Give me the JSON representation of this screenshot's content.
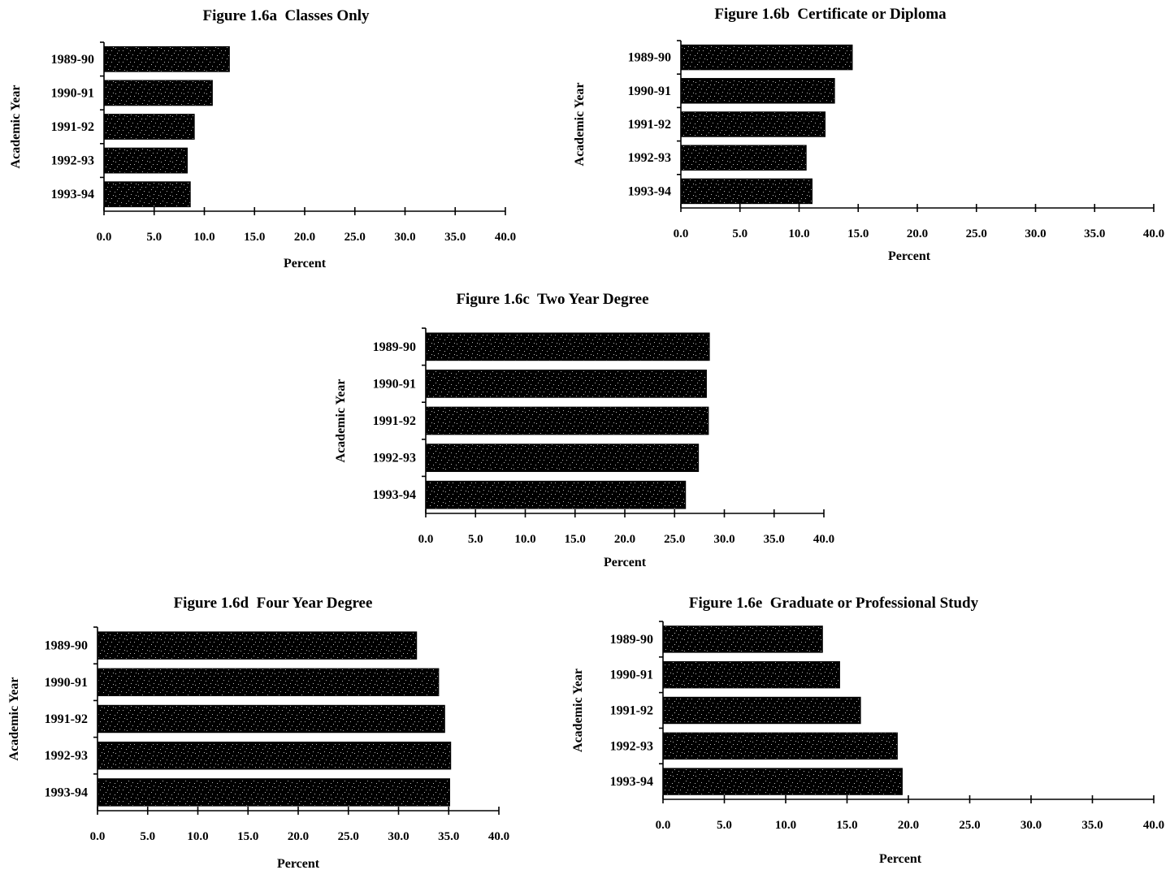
{
  "chart_data": [
    {
      "type": "bar",
      "orientation": "horizontal",
      "title": "Figure 1.6a  Classes Only",
      "ylabel": "Academic Year",
      "xlabel": "Percent",
      "categories": [
        "1989-90",
        "1990-91",
        "1991-92",
        "1992-93",
        "1993-94"
      ],
      "values": [
        12.5,
        10.8,
        9.0,
        8.3,
        8.6
      ],
      "xlim": [
        0,
        40
      ],
      "xticks": [
        "0.0",
        "5.0",
        "10.0",
        "15.0",
        "20.0",
        "25.0",
        "30.0",
        "35.0",
        "40.0"
      ],
      "grid": false,
      "bar_color": "#000000"
    },
    {
      "type": "bar",
      "orientation": "horizontal",
      "title": "Figure 1.6b  Certificate or Diploma",
      "ylabel": "Academic Year",
      "xlabel": "Percent",
      "categories": [
        "1989-90",
        "1990-91",
        "1991-92",
        "1992-93",
        "1993-94"
      ],
      "values": [
        14.5,
        13.0,
        12.2,
        10.6,
        11.1
      ],
      "xlim": [
        0,
        40
      ],
      "xticks": [
        "0.0",
        "5.0",
        "10.0",
        "15.0",
        "20.0",
        "25.0",
        "30.0",
        "35.0",
        "40.0"
      ],
      "grid": false,
      "bar_color": "#000000"
    },
    {
      "type": "bar",
      "orientation": "horizontal",
      "title": "Figure 1.6c  Two Year Degree",
      "ylabel": "Academic Year",
      "xlabel": "Percent",
      "categories": [
        "1989-90",
        "1990-91",
        "1991-92",
        "1992-93",
        "1993-94"
      ],
      "values": [
        28.5,
        28.2,
        28.4,
        27.4,
        26.1
      ],
      "xlim": [
        0,
        40
      ],
      "xticks": [
        "0.0",
        "5.0",
        "10.0",
        "15.0",
        "20.0",
        "25.0",
        "30.0",
        "35.0",
        "40.0"
      ],
      "grid": false,
      "bar_color": "#000000"
    },
    {
      "type": "bar",
      "orientation": "horizontal",
      "title": "Figure 1.6d  Four Year Degree",
      "ylabel": "Academic Year",
      "xlabel": "Percent",
      "categories": [
        "1989-90",
        "1990-91",
        "1991-92",
        "1992-93",
        "1993-94"
      ],
      "values": [
        31.8,
        34.0,
        34.6,
        35.2,
        35.1
      ],
      "xlim": [
        0,
        40
      ],
      "xticks": [
        "0.0",
        "5.0",
        "10.0",
        "15.0",
        "20.0",
        "25.0",
        "30.0",
        "35.0",
        "40.0"
      ],
      "grid": false,
      "bar_color": "#000000"
    },
    {
      "type": "bar",
      "orientation": "horizontal",
      "title": "Figure 1.6e  Graduate or Professional Study",
      "ylabel": "Academic Year",
      "xlabel": "Percent",
      "categories": [
        "1989-90",
        "1990-91",
        "1991-92",
        "1992-93",
        "1993-94"
      ],
      "values": [
        13.0,
        14.4,
        16.1,
        19.1,
        19.5
      ],
      "xlim": [
        0,
        40
      ],
      "xticks": [
        "0.0",
        "5.0",
        "10.0",
        "15.0",
        "20.0",
        "25.0",
        "30.0",
        "35.0",
        "40.0"
      ],
      "grid": false,
      "bar_color": "#000000"
    }
  ]
}
